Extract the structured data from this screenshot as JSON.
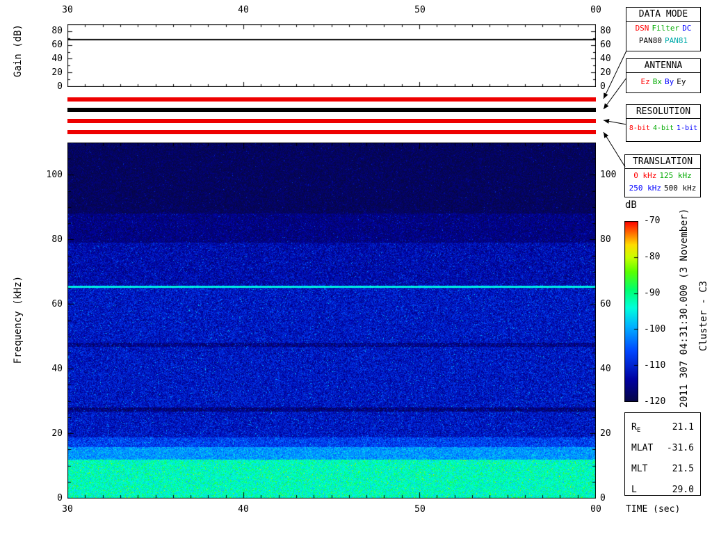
{
  "chart_data": {
    "type": "heatmap",
    "xlabel": "TIME (sec)",
    "ylabel": "Frequency (kHz)",
    "x_tick_labels": [
      "30",
      "40",
      "50",
      "00"
    ],
    "x_range_sec": [
      30,
      60
    ],
    "y_range_khz": [
      0,
      110
    ],
    "y_tick_labels": [
      "0",
      "20",
      "40",
      "60",
      "80",
      "100"
    ],
    "y_major_step_khz": 20,
    "y_minor_step_khz": 5,
    "colorbar": {
      "label": "dB",
      "tick_labels": [
        "-70",
        "-80",
        "-90",
        "-100",
        "-110",
        "-120"
      ],
      "min_db": -120,
      "max_db": -70
    },
    "colormap_stops": [
      {
        "t": 0.0,
        "rgb": [
          6,
          6,
          70
        ]
      },
      {
        "t": 0.12,
        "rgb": [
          0,
          0,
          160
        ]
      },
      {
        "t": 0.28,
        "rgb": [
          0,
          70,
          255
        ]
      },
      {
        "t": 0.42,
        "rgb": [
          0,
          180,
          255
        ]
      },
      {
        "t": 0.52,
        "rgb": [
          0,
          255,
          220
        ]
      },
      {
        "t": 0.62,
        "rgb": [
          0,
          255,
          110
        ]
      },
      {
        "t": 0.72,
        "rgb": [
          90,
          255,
          0
        ]
      },
      {
        "t": 0.8,
        "rgb": [
          200,
          255,
          0
        ]
      },
      {
        "t": 0.87,
        "rgb": [
          255,
          220,
          0
        ]
      },
      {
        "t": 0.93,
        "rgb": [
          255,
          120,
          0
        ]
      },
      {
        "t": 1.0,
        "rgb": [
          255,
          0,
          0
        ]
      }
    ],
    "noise_bands": [
      {
        "f_min": 0,
        "f_max": 12,
        "mean_db": -93,
        "spread_db": 7,
        "sparkle_p": 0.05,
        "sparkle_db": 8
      },
      {
        "f_min": 12,
        "f_max": 16,
        "mean_db": -101,
        "spread_db": 6,
        "sparkle_p": 0.02,
        "sparkle_db": 7
      },
      {
        "f_min": 16,
        "f_max": 19,
        "mean_db": -107,
        "spread_db": 7,
        "sparkle_p": 0.02,
        "sparkle_db": 8
      },
      {
        "f_min": 19,
        "f_max": 66,
        "mean_db": -111.5,
        "spread_db": 7,
        "sparkle_p": 0.03,
        "sparkle_db": 9
      },
      {
        "f_min": 66,
        "f_max": 79,
        "mean_db": -113,
        "spread_db": 6.5,
        "sparkle_p": 0.02,
        "sparkle_db": 9
      },
      {
        "f_min": 79,
        "f_max": 88,
        "mean_db": -116,
        "spread_db": 5,
        "sparkle_p": 0.015,
        "sparkle_db": 8
      },
      {
        "f_min": 88,
        "f_max": 110,
        "mean_db": -118.5,
        "spread_db": 4,
        "sparkle_p": 0.01,
        "sparkle_db": 7
      }
    ],
    "spectral_lines": [
      {
        "freq_khz": 65.5,
        "level_db": -95,
        "width_khz": 0.3
      }
    ],
    "dark_lines": [
      {
        "freq_khz": 27.5,
        "delta_db": -5
      },
      {
        "freq_khz": 47.5,
        "delta_db": -4
      }
    ],
    "gain_panel": {
      "ylabel": "Gain (dB)",
      "y_tick_labels": [
        "0",
        "20",
        "40",
        "60",
        "80"
      ],
      "y_range_db": [
        0,
        90
      ],
      "gain_value_db": 68
    },
    "random_seed": 20111103
  },
  "top_axis": {
    "tick_labels": [
      "30",
      "40",
      "50",
      "00"
    ]
  },
  "time_axis": {
    "label": "TIME (sec)",
    "tick_labels": [
      "30",
      "40",
      "50",
      "00"
    ]
  },
  "status_bars": [
    {
      "name": "data-mode",
      "color": "#ee0000"
    },
    {
      "name": "antenna",
      "color": "#000000"
    },
    {
      "name": "resolution",
      "color": "#ee0000"
    },
    {
      "name": "translation",
      "color": "#ee0000"
    }
  ],
  "legend_boxes": {
    "data_mode": {
      "title": "DATA MODE",
      "row1": [
        {
          "label": "DSN",
          "color": "#ff0000"
        },
        {
          "label": "Filter",
          "color": "#00aa00"
        },
        {
          "label": "DC",
          "color": "#0000ff"
        }
      ],
      "row2": [
        {
          "label": "PAN80",
          "color": "#000000"
        },
        {
          "label": "PAN81",
          "color": "#00aaaa"
        }
      ]
    },
    "antenna": {
      "title": "ANTENNA",
      "row1": [
        {
          "label": "Ez",
          "color": "#ff0000"
        },
        {
          "label": "Bx",
          "color": "#00aa00"
        },
        {
          "label": "By",
          "color": "#0000ff"
        },
        {
          "label": "Ey",
          "color": "#000000"
        }
      ]
    },
    "resolution": {
      "title": "RESOLUTION",
      "row1": [
        {
          "label": "8-bit",
          "color": "#ff0000"
        },
        {
          "label": "4-bit",
          "color": "#00aa00"
        },
        {
          "label": "1-bit",
          "color": "#0000ff"
        }
      ]
    },
    "translation": {
      "title": "TRANSLATION",
      "row1": [
        {
          "label": "0 kHz",
          "color": "#ff0000"
        },
        {
          "label": "125 kHz",
          "color": "#00aa00"
        }
      ],
      "row2": [
        {
          "label": "250 kHz",
          "color": "#0000ff"
        },
        {
          "label": "500 kHz",
          "color": "#000000"
        }
      ]
    }
  },
  "side_text": {
    "datetime": "2011 307 04:31:30.000 (3 November)",
    "spacecraft": "Cluster - C3"
  },
  "ephemeris": {
    "rows": [
      {
        "label": "R",
        "sub": "E",
        "value": "21.1"
      },
      {
        "label": "MLAT",
        "sub": "",
        "value": "-31.6"
      },
      {
        "label": "MLT",
        "sub": "",
        "value": "21.5"
      },
      {
        "label": "L",
        "sub": "",
        "value": "29.0"
      }
    ]
  }
}
